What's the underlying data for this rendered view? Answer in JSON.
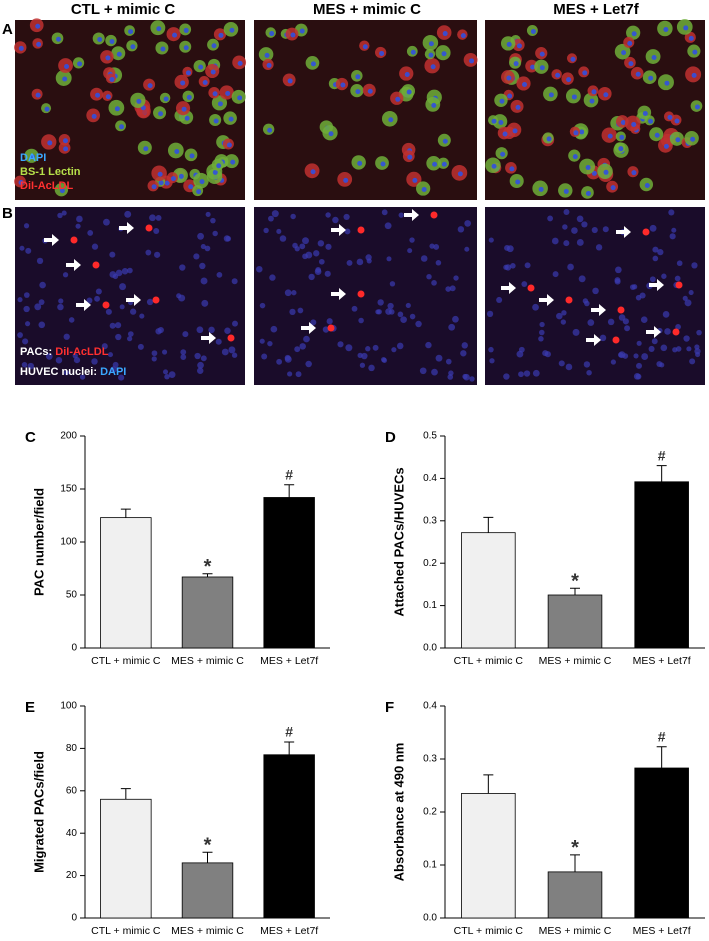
{
  "figure": {
    "column_titles": [
      "CTL + mimic C",
      "MES + mimic C",
      "MES + Let7f"
    ],
    "panel_labels": [
      "A",
      "B"
    ],
    "legend_a": [
      "DAPI",
      "BS-1 Lectin",
      "DiI-AcLDL"
    ],
    "legend_b": [
      {
        "label": "PACs:",
        "stain": "DiI-AcLDL"
      },
      {
        "label": "HUVEC nuclei:",
        "stain": "DAPI"
      }
    ]
  },
  "chart_data": [
    {
      "type": "bar",
      "panel": "C",
      "y_label": "PAC number/field",
      "categories": [
        "CTL + mimic C",
        "MES + mimic C",
        "MES + Let7f"
      ],
      "values": [
        123,
        67,
        142
      ],
      "errors": [
        8,
        3,
        12
      ],
      "value_annotations": [
        null,
        "*",
        "#"
      ],
      "colors": [
        "#f0f0f0",
        "#808080",
        "#000000"
      ],
      "ylim": [
        0,
        200
      ],
      "yticks": [
        0,
        50,
        100,
        150,
        200
      ]
    },
    {
      "type": "bar",
      "panel": "D",
      "y_label": "Attached PACs/HUVECs",
      "categories": [
        "CTL + mimic C",
        "MES + mimic C",
        "MES + Let7f"
      ],
      "values": [
        0.272,
        0.125,
        0.392
      ],
      "errors": [
        0.036,
        0.016,
        0.038
      ],
      "value_annotations": [
        null,
        "*",
        "#"
      ],
      "colors": [
        "#f0f0f0",
        "#808080",
        "#000000"
      ],
      "ylim": [
        0,
        0.5
      ],
      "yticks": [
        {
          "value": 0,
          "label": "0.0"
        },
        0.1,
        0.2,
        0.3,
        0.4,
        0.5
      ]
    },
    {
      "type": "bar",
      "panel": "E",
      "y_label": "Migrated PACs/field",
      "categories": [
        "CTL + mimic C",
        "MES + mimic C",
        "MES + Let7f"
      ],
      "values": [
        56,
        26,
        77
      ],
      "errors": [
        5,
        5,
        6
      ],
      "value_annotations": [
        null,
        "*",
        "#"
      ],
      "colors": [
        "#f0f0f0",
        "#808080",
        "#000000"
      ],
      "ylim": [
        0,
        100
      ],
      "yticks": [
        0,
        20,
        40,
        60,
        80,
        100
      ]
    },
    {
      "type": "bar",
      "panel": "F",
      "y_label": "Absorbance at 490 nm",
      "categories": [
        "CTL + mimic C",
        "MES + mimic C",
        "MES + Let7f"
      ],
      "values": [
        0.235,
        0.087,
        0.283
      ],
      "errors": [
        0.035,
        0.032,
        0.04
      ],
      "value_annotations": [
        null,
        "*",
        "#"
      ],
      "colors": [
        "#f0f0f0",
        "#808080",
        "#000000"
      ],
      "ylim": [
        0,
        0.4
      ],
      "yticks": [
        {
          "value": 0,
          "label": "0.0"
        },
        0.1,
        0.2,
        0.3,
        0.4
      ]
    }
  ]
}
